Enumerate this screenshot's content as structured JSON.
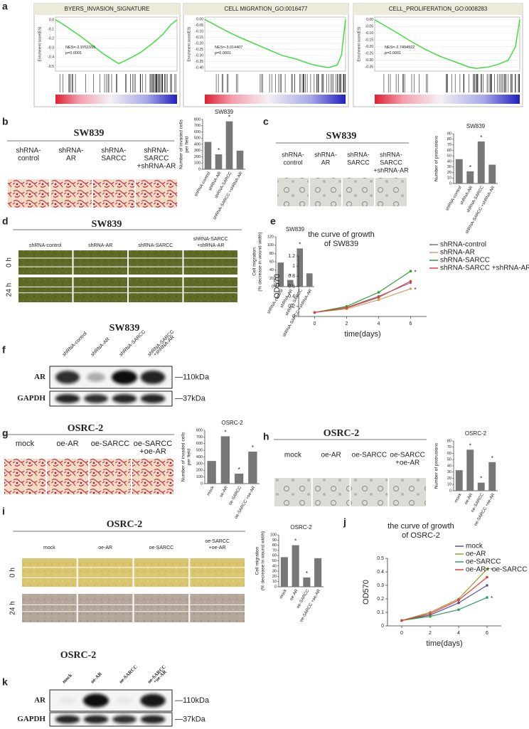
{
  "panel_labels": [
    "a",
    "b",
    "c",
    "d",
    "e",
    "f",
    "g",
    "h",
    "i",
    "j",
    "k"
  ],
  "chart_data": [
    {
      "type": "line",
      "title": "BYERS_INVASION_SIGNATURE",
      "ylabel": "Enrichment score(ES)",
      "color": "#33dd33",
      "x": [
        0,
        3,
        10,
        20,
        30,
        40,
        52,
        60,
        70,
        80,
        88,
        95,
        100
      ],
      "values": [
        0,
        -0.02,
        -0.08,
        -0.17,
        -0.27,
        -0.37,
        -0.47,
        -0.42,
        -0.35,
        -0.25,
        -0.16,
        -0.05,
        0
      ],
      "xlim": [
        0,
        100
      ],
      "ylim": [
        -0.55,
        0.03
      ],
      "yticks": [
        {
          "value": 0,
          "label": "0.0"
        },
        -0.1,
        -0.2,
        -0.3,
        -0.4,
        -0.5
      ],
      "annotations": [
        "NES=-2.9761555",
        "p=0.0001"
      ]
    },
    {
      "type": "line",
      "title": "CELL MIGRATION_GO:0016477",
      "ylabel": "Enrichment score(ES)",
      "color": "#33dd33",
      "x": [
        0,
        8,
        16,
        25,
        35,
        45,
        55,
        65,
        75,
        82,
        88,
        94,
        97,
        100
      ],
      "values": [
        0,
        -0.05,
        -0.1,
        -0.15,
        -0.2,
        -0.25,
        -0.3,
        -0.33,
        -0.37,
        -0.39,
        -0.4,
        -0.38,
        -0.3,
        0
      ],
      "xlim": [
        0,
        100
      ],
      "ylim": [
        -0.43,
        0.02
      ],
      "yticks": [
        {
          "value": 0,
          "label": "0.00"
        },
        -0.05,
        {
          "value": -0.1,
          "label": "-0.10"
        },
        -0.15,
        {
          "value": -0.2,
          "label": "-0.20"
        },
        -0.25,
        {
          "value": -0.3,
          "label": "-0.30"
        },
        -0.35,
        {
          "value": -0.4,
          "label": "-0.40"
        }
      ],
      "annotations": [
        "NES=-3.014407",
        "p=0.0001"
      ]
    },
    {
      "type": "line",
      "title": "CELL_PROLIFERATION_GO:0008283",
      "ylabel": "Enrichment score(ES)",
      "color": "#33dd33",
      "x": [
        0,
        8,
        16,
        25,
        35,
        45,
        55,
        65,
        70,
        78,
        85,
        92,
        97,
        100
      ],
      "values": [
        0,
        -0.05,
        -0.1,
        -0.16,
        -0.22,
        -0.27,
        -0.31,
        -0.35,
        -0.36,
        -0.35,
        -0.33,
        -0.3,
        -0.2,
        0
      ],
      "xlim": [
        0,
        100
      ],
      "ylim": [
        -0.38,
        0.02
      ],
      "yticks": [
        {
          "value": 0,
          "label": "0.00"
        },
        -0.05,
        {
          "value": -0.1,
          "label": "-0.10"
        },
        -0.15,
        {
          "value": -0.2,
          "label": "-0.20"
        },
        -0.25,
        {
          "value": -0.3,
          "label": "-0.30"
        },
        -0.35
      ],
      "annotations": [
        "NES=-2.7494922",
        "p=0.0001"
      ]
    },
    {
      "type": "bar",
      "title": "SW839",
      "ylabel": [
        "Number of invaded cells",
        "per field"
      ],
      "color": "#777777",
      "categories": [
        "shRNA-control",
        "shRNA-AR",
        "shRNA-SARCC",
        "shRNA-SARCC +shRNA-AR"
      ],
      "values": [
        440,
        240,
        770,
        300
      ],
      "notes": [
        null,
        "*",
        "*",
        null
      ],
      "ylim": [
        0,
        800
      ],
      "yticks": [
        0,
        100,
        200,
        300,
        400,
        500,
        600,
        700,
        800
      ]
    },
    {
      "type": "bar",
      "title": "SW839",
      "ylabel": "Number of protrusions",
      "color": "#777777",
      "categories": [
        "shRNA-control",
        "shRNA-AR",
        "shRNA-SARCC",
        "shRNA-SARCC +shRNA-AR"
      ],
      "values": [
        44,
        22,
        76,
        34
      ],
      "notes": [
        null,
        "*",
        "*",
        null
      ],
      "ylim": [
        0,
        90
      ],
      "yticks": [
        0,
        10,
        20,
        30,
        40,
        50,
        60,
        70,
        80,
        90
      ]
    },
    {
      "type": "bar",
      "title": "SW839",
      "ylabel": [
        "Cell migration",
        "(% decrease in wound width)"
      ],
      "color": "#777777",
      "categories": [
        "shRNA-control",
        "shRNA-AR",
        "shRNA-SARCC",
        "shRNA-SARCC +shRNA-AR"
      ],
      "values": [
        58,
        16,
        92,
        32
      ],
      "notes": [
        null,
        "*",
        "*",
        null
      ],
      "ylim": [
        0,
        120
      ],
      "yticks": [
        0,
        20,
        40,
        60,
        80,
        100,
        120
      ]
    },
    {
      "type": "line",
      "title": [
        "the curve of growth",
        "of SW839"
      ],
      "xlabel": "time(days)",
      "ylabel": "OD570",
      "x": [
        0,
        2,
        4,
        6
      ],
      "xlim": [
        -1,
        7
      ],
      "xticks": [
        0,
        2,
        4,
        6
      ],
      "ylim": [
        0,
        1.2
      ],
      "yticks": [
        0,
        0.2,
        0.4,
        0.6,
        0.8,
        1,
        1.2
      ],
      "series": [
        {
          "name": "shRNA-control",
          "color": "#7a6f9b",
          "values": [
            0.08,
            0.18,
            0.4,
            0.67
          ]
        },
        {
          "name": "shRNA-AR",
          "color": "#c8a66a",
          "values": [
            0.08,
            0.15,
            0.33,
            0.55
          ],
          "end_note": "*"
        },
        {
          "name": "shRNA-SARCC",
          "color": "#2ca02c",
          "values": [
            0.08,
            0.2,
            0.48,
            0.9
          ],
          "end_note": "*"
        },
        {
          "name": "shRNA-SARCC +shRNA-AR",
          "color": "#e0403a",
          "values": [
            0.08,
            0.17,
            0.38,
            0.7
          ]
        }
      ]
    },
    {
      "type": "bar",
      "title": "OSRC-2",
      "ylabel": [
        "Number of invaded cells",
        "per field"
      ],
      "color": "#777777",
      "categories": [
        "mock",
        "oe-AR",
        "oe-SARCC",
        "oe-SARCC +oe-AR"
      ],
      "values": [
        340,
        710,
        150,
        480
      ],
      "notes": [
        null,
        "*",
        "*",
        "*"
      ],
      "ylim": [
        0,
        800
      ],
      "yticks": [
        0,
        100,
        200,
        300,
        400,
        500,
        600,
        700,
        800
      ]
    },
    {
      "type": "bar",
      "title": "OSRC-2",
      "ylabel": "Number of protrusions",
      "color": "#777777",
      "categories": [
        "mock",
        "oe-AR",
        "oe-SARCC",
        "oe-SARCC +oe-AR"
      ],
      "values": [
        33,
        66,
        13,
        46
      ],
      "notes": [
        null,
        "*",
        "*",
        "*"
      ],
      "ylim": [
        0,
        80
      ],
      "yticks": [
        0,
        10,
        20,
        30,
        40,
        50,
        60,
        70,
        80
      ]
    },
    {
      "type": "bar",
      "title": "OSRC-2",
      "ylabel": [
        "Cell migration",
        "(% decrease in wound width)"
      ],
      "color": "#777777",
      "categories": [
        "mock",
        "oe-AR",
        "oe-SARCC",
        "oe-SARCC +oe-AR"
      ],
      "values": [
        57,
        80,
        18,
        55
      ],
      "notes": [
        null,
        "*",
        "*",
        null
      ],
      "ylim": [
        0,
        100
      ],
      "yticks": [
        0,
        10,
        20,
        30,
        40,
        50,
        60,
        70,
        80,
        90,
        100
      ]
    },
    {
      "type": "line",
      "title": [
        "the curve of growth",
        "of OSRC-2"
      ],
      "xlabel": "time(days)",
      "ylabel": "OD570",
      "x": [
        0,
        2,
        4,
        6
      ],
      "xlim": [
        -1,
        7
      ],
      "xticks": [
        0,
        2,
        4,
        6
      ],
      "ylim": [
        0,
        0.5
      ],
      "yticks": [
        0,
        0.1,
        0.2,
        0.3,
        0.4,
        0.5
      ],
      "series": [
        {
          "name": "mock",
          "color": "#5b4f9b",
          "values": [
            0.04,
            0.08,
            0.17,
            0.3
          ]
        },
        {
          "name": "oe-AR",
          "color": "#9a9a3a",
          "values": [
            0.04,
            0.1,
            0.2,
            0.42
          ],
          "end_note": "*"
        },
        {
          "name": "oe-SARCC",
          "color": "#2ca05a",
          "values": [
            0.04,
            0.07,
            0.12,
            0.21
          ],
          "end_note": "*"
        },
        {
          "name": "oe-AR+ oe-SARCC",
          "color": "#e0403a",
          "values": [
            0.04,
            0.09,
            0.19,
            0.36
          ]
        }
      ]
    }
  ],
  "figure": {
    "b": {
      "title": "SW839",
      "image_labels": [
        [
          "shRNA-",
          "control"
        ],
        [
          "shRNA-",
          "AR"
        ],
        [
          "shRNA-",
          "SARCC"
        ],
        [
          "shRNA-",
          "SARCC",
          "+shRNA-AR"
        ]
      ]
    },
    "c": {
      "title": "SW839",
      "image_labels": [
        [
          "shRNA-",
          "control"
        ],
        [
          "shRNA-",
          "AR"
        ],
        [
          "shRNA-",
          "SARCC"
        ],
        [
          "shRNA-",
          "SARCC",
          "+shRNA-AR"
        ]
      ]
    },
    "d": {
      "title": "SW839",
      "column_labels": [
        [
          "shRNA-control"
        ],
        [
          "shRNA-AR"
        ],
        [
          "shRNA-SARCC"
        ],
        [
          "shRNA-SARCC",
          "+shRNA-AR"
        ]
      ],
      "row_labels": [
        "0 h",
        "24 h"
      ]
    },
    "f": {
      "title": "SW839",
      "lanes": [
        [
          "shRNA-control"
        ],
        [
          "shRNA-AR"
        ],
        [
          "shRNA-SARCC"
        ],
        [
          "shRNA-SARCC",
          "+shRNA-AR"
        ]
      ],
      "rows": [
        {
          "name": "AR",
          "size": "—110kDa"
        },
        {
          "name": "GAPDH",
          "size": "—37kDa"
        }
      ]
    },
    "g": {
      "title": "OSRC-2",
      "image_labels": [
        [
          "mock"
        ],
        [
          "oe-AR"
        ],
        [
          "oe-SARCC"
        ],
        [
          "oe-SARCC",
          "+oe-AR"
        ]
      ]
    },
    "h": {
      "title": "OSRC-2",
      "image_labels": [
        [
          "mock"
        ],
        [
          "oe-AR"
        ],
        [
          "oe-SARCC"
        ],
        [
          "oe-SARCC",
          "+oe-AR"
        ]
      ]
    },
    "i": {
      "title": "OSRC-2",
      "column_labels": [
        [
          "mock"
        ],
        [
          "oe-AR"
        ],
        [
          "oe-SARCC"
        ],
        [
          "oe-SARCC",
          "+oe-AR"
        ]
      ],
      "row_labels": [
        "0 h",
        "24 h"
      ]
    },
    "k": {
      "title": "OSRC-2",
      "lanes": [
        [
          "mock"
        ],
        [
          "oe-AR"
        ],
        [
          "oe-SARCC"
        ],
        [
          "oe-SARCC",
          "+oe-AR"
        ]
      ],
      "rows": [
        {
          "name": "AR",
          "size": "—110kDa"
        },
        {
          "name": "GAPDH",
          "size": "—37kDa"
        }
      ]
    }
  }
}
